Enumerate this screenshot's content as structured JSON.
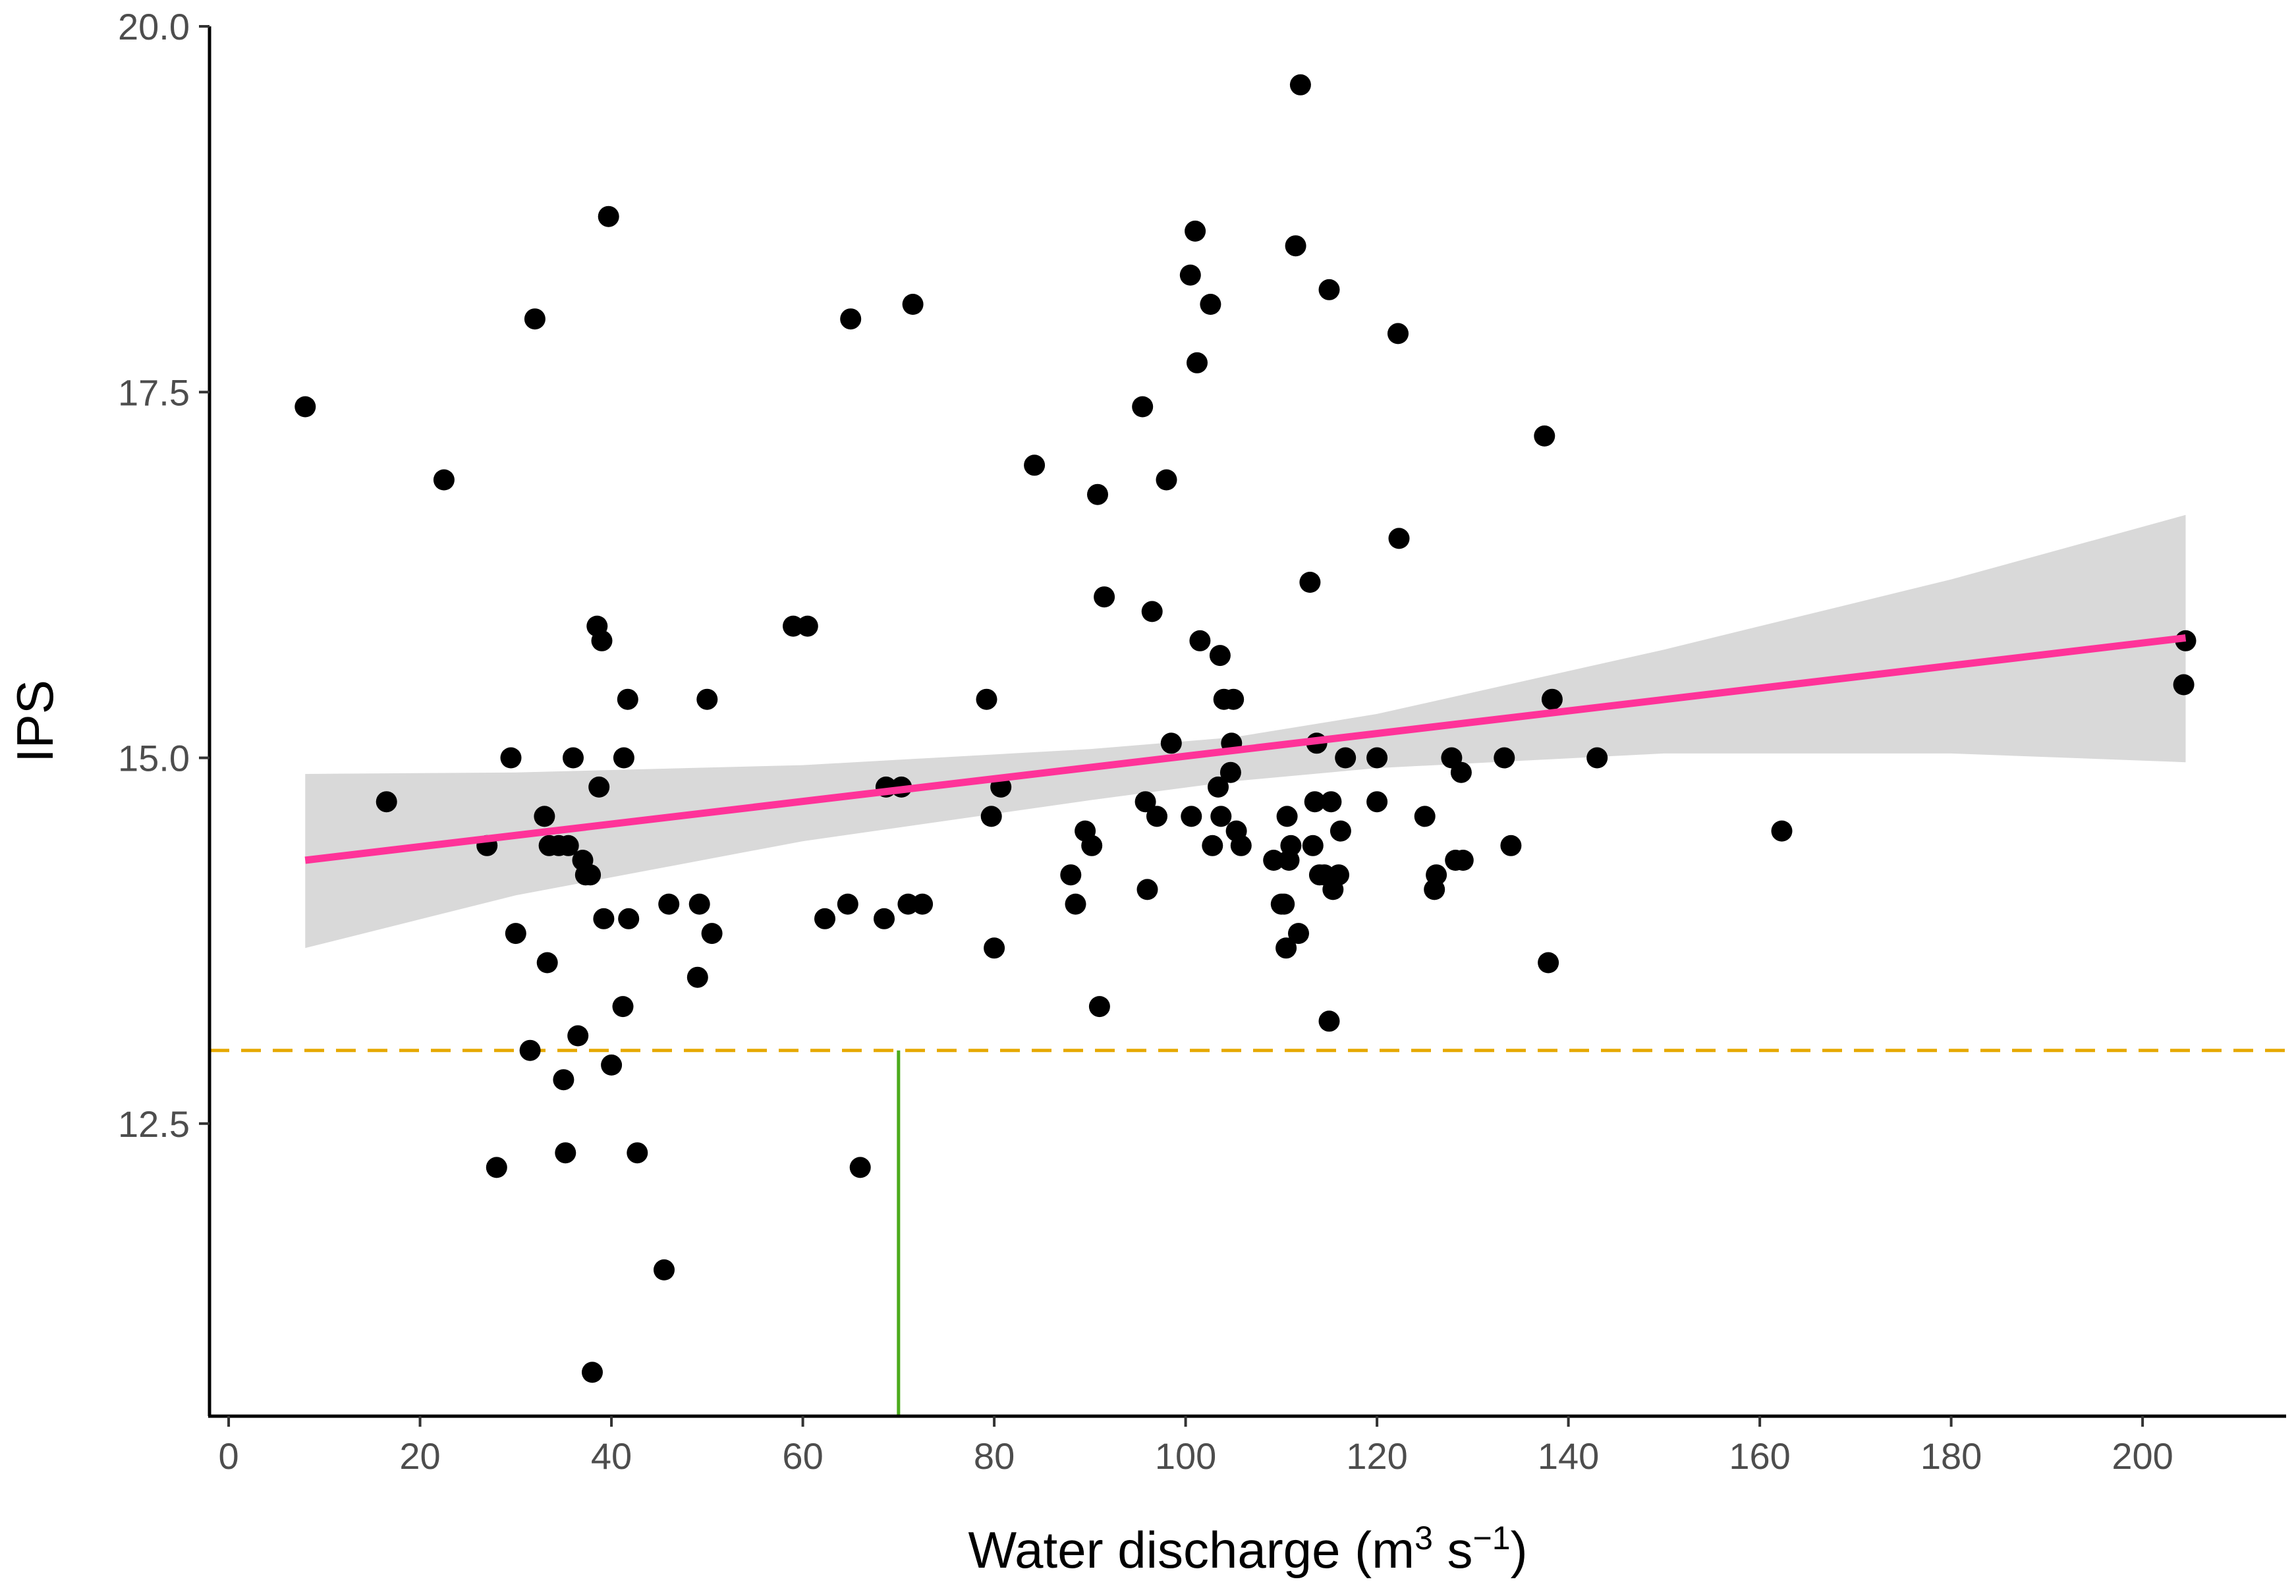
{
  "chart_data": {
    "type": "scatter",
    "title": "",
    "xlabel": {
      "main": "Water discharge (m",
      "sup1": "3",
      "mid": " s",
      "sup2": "−1",
      "end": ")"
    },
    "ylabel": "IPS",
    "xlim": [
      -2,
      215
    ],
    "ylim": [
      10.5,
      20.0
    ],
    "x_ticks": [
      0,
      20,
      40,
      60,
      80,
      100,
      120,
      140,
      160,
      180,
      200
    ],
    "x_tick_labels": [
      "0",
      "20",
      "40",
      "60",
      "80",
      "100",
      "120",
      "140",
      "160",
      "180",
      "200"
    ],
    "y_ticks": [
      12.5,
      15.0,
      17.5,
      20.0
    ],
    "y_tick_labels": [
      "12.5",
      "15.0",
      "17.5",
      "20.0"
    ],
    "grid": false,
    "colors": {
      "points": "#000000",
      "fit_line": "#ff3399",
      "confidence_band": "#d9d9d9",
      "threshold_h": "#e6a800",
      "threshold_v": "#4cab1c",
      "axis": "#000000"
    },
    "points": [
      [
        8,
        17.4
      ],
      [
        16.5,
        14.7
      ],
      [
        22.5,
        16.9
      ],
      [
        27,
        14.4
      ],
      [
        28,
        12.2
      ],
      [
        29.5,
        15.0
      ],
      [
        30,
        13.8
      ],
      [
        31.5,
        13.0
      ],
      [
        32,
        18.0
      ],
      [
        33,
        14.6
      ],
      [
        33.3,
        13.6
      ],
      [
        33.5,
        14.4
      ],
      [
        34.5,
        14.4
      ],
      [
        35,
        12.8
      ],
      [
        35.2,
        12.3
      ],
      [
        35.5,
        14.4
      ],
      [
        36,
        15.0
      ],
      [
        36.5,
        13.1
      ],
      [
        37,
        14.3
      ],
      [
        37.3,
        14.2
      ],
      [
        37.8,
        14.2
      ],
      [
        38,
        10.8
      ],
      [
        38.5,
        15.9
      ],
      [
        38.7,
        14.8
      ],
      [
        39,
        15.8
      ],
      [
        39.2,
        13.9
      ],
      [
        39.7,
        18.7
      ],
      [
        40,
        12.9
      ],
      [
        41.2,
        13.3
      ],
      [
        41.3,
        15.0
      ],
      [
        41.7,
        15.4
      ],
      [
        41.8,
        13.9
      ],
      [
        42.7,
        12.3
      ],
      [
        45.5,
        11.5
      ],
      [
        46,
        14.0
      ],
      [
        49,
        13.5
      ],
      [
        49.2,
        14.0
      ],
      [
        50,
        15.4
      ],
      [
        50.5,
        13.8
      ],
      [
        59,
        15.9
      ],
      [
        60.5,
        15.9
      ],
      [
        62.3,
        13.9
      ],
      [
        64.7,
        14.0
      ],
      [
        65,
        18.0
      ],
      [
        66,
        12.2
      ],
      [
        68.5,
        13.9
      ],
      [
        68.7,
        14.8
      ],
      [
        70.3,
        14.8
      ],
      [
        71,
        14.0
      ],
      [
        71.5,
        18.1
      ],
      [
        72.5,
        14.0
      ],
      [
        79.2,
        15.4
      ],
      [
        79.7,
        14.6
      ],
      [
        80,
        13.7
      ],
      [
        80.7,
        14.8
      ],
      [
        84.2,
        17.0
      ],
      [
        88,
        14.2
      ],
      [
        88.5,
        14.0
      ],
      [
        89.5,
        14.5
      ],
      [
        90.2,
        14.4
      ],
      [
        90.8,
        16.8
      ],
      [
        91,
        13.3
      ],
      [
        91.5,
        16.1
      ],
      [
        95.5,
        17.4
      ],
      [
        95.8,
        14.7
      ],
      [
        96,
        14.1
      ],
      [
        96.5,
        16.0
      ],
      [
        97,
        14.6
      ],
      [
        98,
        16.9
      ],
      [
        98.5,
        15.1
      ],
      [
        100.5,
        18.3
      ],
      [
        100.6,
        14.6
      ],
      [
        101,
        18.6
      ],
      [
        101.2,
        17.7
      ],
      [
        101.5,
        15.8
      ],
      [
        102.6,
        18.1
      ],
      [
        102.8,
        14.4
      ],
      [
        103.4,
        14.8
      ],
      [
        103.6,
        15.7
      ],
      [
        103.7,
        14.6
      ],
      [
        104,
        15.4
      ],
      [
        104.7,
        14.9
      ],
      [
        104.8,
        15.1
      ],
      [
        105,
        15.4
      ],
      [
        105.3,
        14.5
      ],
      [
        105.8,
        14.4
      ],
      [
        109.2,
        14.3
      ],
      [
        110,
        14.0
      ],
      [
        110.3,
        14.0
      ],
      [
        110.5,
        13.7
      ],
      [
        110.6,
        14.6
      ],
      [
        110.8,
        14.3
      ],
      [
        111,
        14.4
      ],
      [
        111.5,
        18.5
      ],
      [
        111.8,
        13.8
      ],
      [
        112,
        19.6
      ],
      [
        113,
        16.2
      ],
      [
        113.3,
        14.4
      ],
      [
        113.5,
        14.7
      ],
      [
        113.7,
        15.1
      ],
      [
        114,
        14.2
      ],
      [
        114.5,
        14.2
      ],
      [
        115,
        18.2
      ],
      [
        115,
        13.2
      ],
      [
        115.2,
        14.7
      ],
      [
        115.4,
        14.1
      ],
      [
        116,
        14.2
      ],
      [
        116.2,
        14.5
      ],
      [
        116.7,
        15.0
      ],
      [
        120,
        15.0
      ],
      [
        120,
        14.7
      ],
      [
        122.2,
        17.9
      ],
      [
        122.3,
        16.5
      ],
      [
        125,
        14.6
      ],
      [
        126,
        14.1
      ],
      [
        126.2,
        14.2
      ],
      [
        127.8,
        15.0
      ],
      [
        128.2,
        14.3
      ],
      [
        128.8,
        14.9
      ],
      [
        129,
        14.3
      ],
      [
        133.3,
        15.0
      ],
      [
        134,
        14.4
      ],
      [
        137.5,
        17.2
      ],
      [
        137.9,
        13.6
      ],
      [
        138.3,
        15.4
      ],
      [
        143,
        15.0
      ],
      [
        162.3,
        14.5
      ],
      [
        204.3,
        15.5
      ],
      [
        204.5,
        15.8
      ]
    ],
    "fit_line": {
      "x": [
        8,
        204.5
      ],
      "y": [
        14.3,
        15.82
      ]
    },
    "confidence_band": {
      "x": [
        8,
        30,
        60,
        90,
        105,
        120,
        150,
        180,
        204.5
      ],
      "lower": [
        13.7,
        14.06,
        14.43,
        14.71,
        14.84,
        14.93,
        15.03,
        15.03,
        14.97
      ],
      "upper": [
        14.89,
        14.9,
        14.95,
        15.06,
        15.14,
        15.3,
        15.74,
        16.22,
        16.66
      ]
    },
    "threshold_y": 13.0,
    "threshold_x": 70
  }
}
